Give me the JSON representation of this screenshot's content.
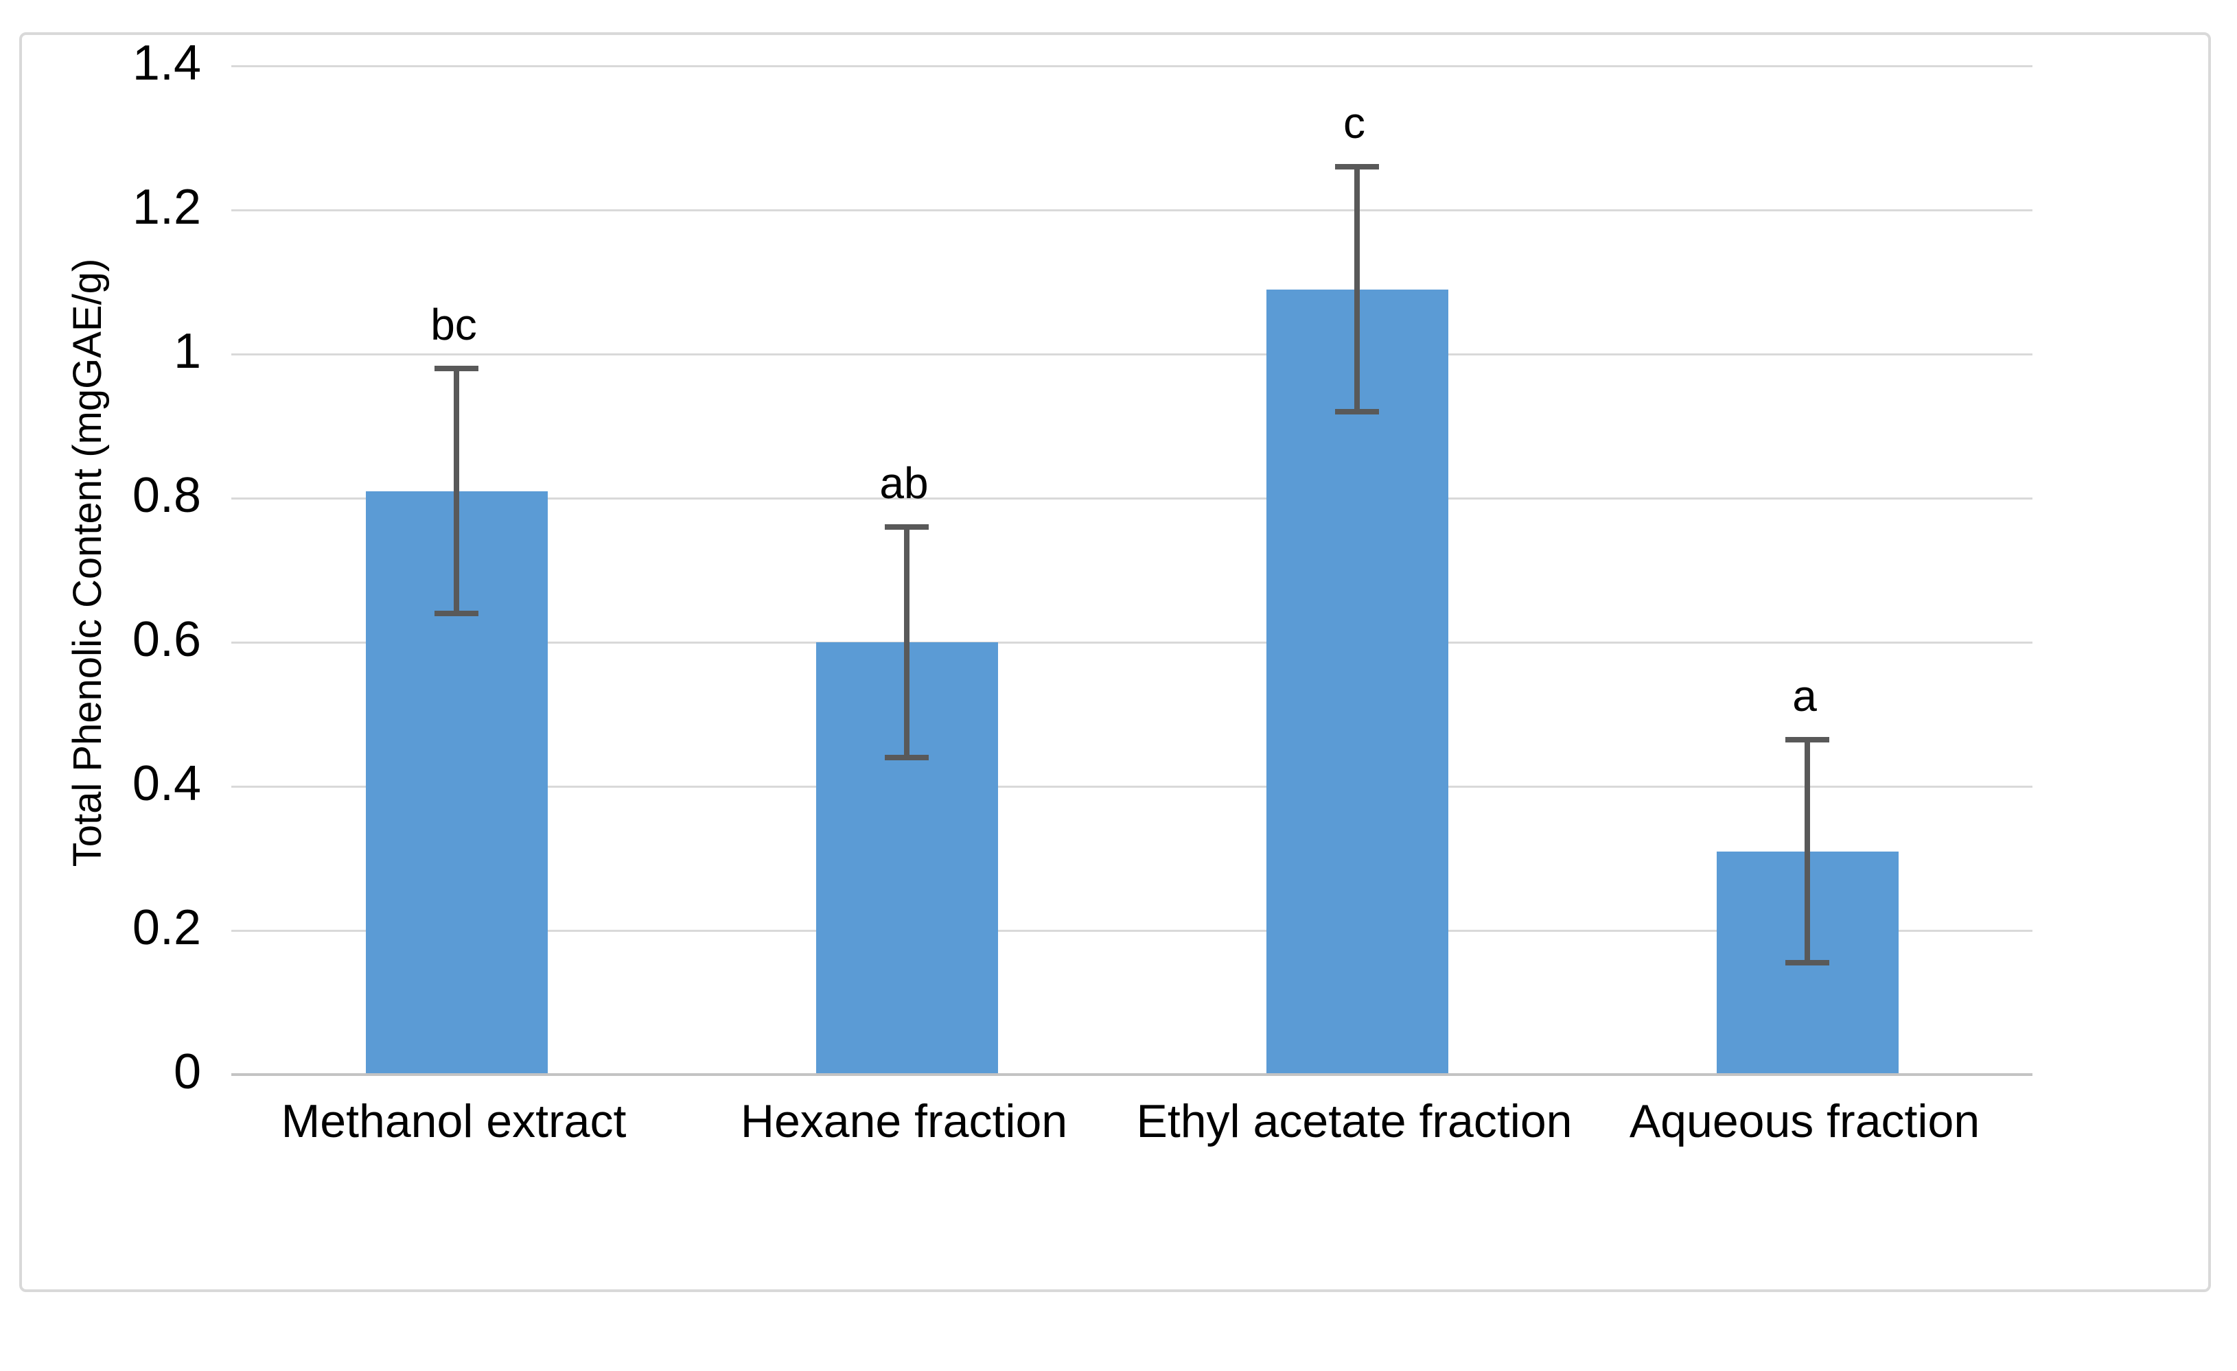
{
  "chart_data": {
    "type": "bar",
    "title": "",
    "xlabel": "",
    "ylabel": "Total Phenolic Content (mgGAE/g)",
    "categories": [
      "Methanol extract",
      "Hexane fraction",
      "Ethyl acetate fraction",
      "Aqueous fraction"
    ],
    "values": [
      0.81,
      0.6,
      1.09,
      0.31
    ],
    "error_bars": [
      0.17,
      0.16,
      0.17,
      0.155
    ],
    "significance_letters": [
      "bc",
      "ab",
      "c",
      "a"
    ],
    "y_ticks": [
      0,
      0.2,
      0.4,
      0.6,
      0.8,
      1,
      1.2,
      1.4
    ],
    "y_tick_labels": [
      "0",
      "0.2",
      "0.4",
      "0.6",
      "0.8",
      "1",
      "1.2",
      "1.4"
    ],
    "ylim": [
      0,
      1.4
    ],
    "grid": true,
    "legend_position": "none",
    "bar_color": "#5B9BD5",
    "error_bar_color": "#595959",
    "gridline_color": "#D9D9D9",
    "axis_line_color": "#C3C3C3",
    "figure_border_color": "#D9D9D9",
    "text_color": "#000000"
  }
}
